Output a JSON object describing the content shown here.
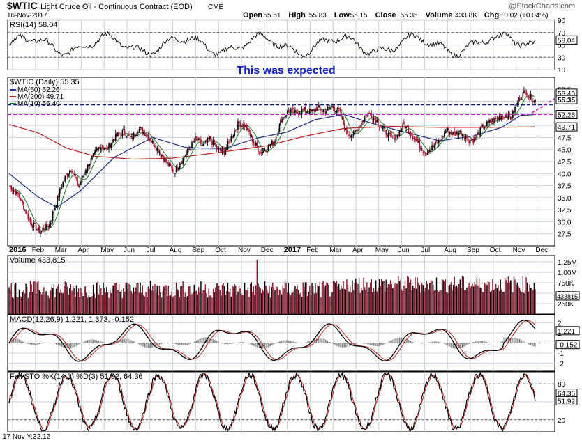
{
  "header": {
    "symbol": "$WTIC",
    "name": "Light Crude Oil - Continuous Contract (EOD)",
    "exchange": "CME",
    "date": "16-Nov-2017",
    "watermark": "@StockCharts.com",
    "ohlc": [
      {
        "label": "Open",
        "value": "55.51"
      },
      {
        "label": "High",
        "value": "55.83"
      },
      {
        "label": "Low",
        "value": "55.15"
      },
      {
        "label": "Close",
        "value": "55.35"
      },
      {
        "label": "Volume",
        "value": "433.8K"
      },
      {
        "label": "Chg",
        "value": "+0.02 (+0.04%)"
      }
    ],
    "chg_arrow": "up-arrow-icon"
  },
  "annotation": "This was expected",
  "footer_readout": "17 Nov Y:32.12",
  "colors": {
    "background": "#ffffff",
    "panel_bg": "#ffffff",
    "grid": "#c9d1de",
    "up_candle": "#000000",
    "down_candle": "#b01030",
    "ma50": "#1c2a8a",
    "ma200": "#c02020",
    "ma10": "#1b7a1b",
    "resistance_line": "#0a1590",
    "support_line": "#d010d0",
    "annotation_text": "#1420c8",
    "volume_bar": "#8b1a2e",
    "macd_line": "#000000",
    "macd_signal": "#c02020",
    "macd_hist": "#7a7a7a",
    "sto_k": "#000000",
    "sto_d": "#c02020"
  },
  "chart_data": [
    {
      "id": "rsi",
      "type": "line",
      "title": "RSI(14) 58.04",
      "ylim": [
        10,
        90
      ],
      "ticks": [
        90,
        70,
        50,
        30,
        10
      ],
      "last_value": 58.04,
      "bands": [
        70,
        30
      ]
    },
    {
      "id": "price",
      "type": "candlestick",
      "title": "$WTIC (Daily) 55.35",
      "legend": [
        {
          "name": "MA(50) 52.26",
          "color": "#1c2a8a"
        },
        {
          "name": "MA(200) 49.71",
          "color": "#c02020"
        },
        {
          "name": "MA(10) 56.40",
          "color": "#1b7a1b"
        }
      ],
      "ylim": [
        25,
        60
      ],
      "yticks": [
        57.5,
        55.0,
        52.5,
        50.0,
        47.5,
        45.0,
        42.5,
        40.0,
        37.5,
        35.0,
        32.5,
        30.0,
        27.5
      ],
      "ytick_labels": [
        "57.5",
        "55.0",
        "52.5",
        "50.0",
        "47.5",
        "45.0",
        "42.5",
        "40.0",
        "37.5",
        "35.0",
        "32.5",
        "30.0",
        "27.5"
      ],
      "price_tags": [
        {
          "value": 56.4,
          "label": "56.40"
        },
        {
          "value": 55.35,
          "label": "55.35"
        },
        {
          "value": 52.26,
          "label": "52.26"
        },
        {
          "value": 49.71,
          "label": "49.71"
        }
      ],
      "xaxis_labels": [
        "2016",
        "Feb",
        "Mar",
        "Apr",
        "May",
        "Jun",
        "Jul",
        "Aug",
        "Sep",
        "Oct",
        "Nov",
        "Dec",
        "2017",
        "Feb",
        "Mar",
        "Apr",
        "May",
        "Jun",
        "Jul",
        "Aug",
        "Sep",
        "Oct",
        "Nov",
        "Dec"
      ],
      "xaxis_bold": [
        "2016",
        "2017"
      ],
      "horizontal_lines": [
        {
          "name": "resistance",
          "y": 54.3,
          "style": "dashed"
        },
        {
          "name": "support",
          "y": 52.3,
          "style": "dashed"
        }
      ],
      "anchors": [
        [
          0,
          37.5
        ],
        [
          0.02,
          35.5
        ],
        [
          0.045,
          29.8
        ],
        [
          0.065,
          27.9
        ],
        [
          0.085,
          29.4
        ],
        [
          0.1,
          34.5
        ],
        [
          0.115,
          38.8
        ],
        [
          0.13,
          41.2
        ],
        [
          0.145,
          37.2
        ],
        [
          0.16,
          40.8
        ],
        [
          0.175,
          43.4
        ],
        [
          0.19,
          45.8
        ],
        [
          0.205,
          45.0
        ],
        [
          0.22,
          47.5
        ],
        [
          0.24,
          48.8
        ],
        [
          0.255,
          47.2
        ],
        [
          0.27,
          49.4
        ],
        [
          0.285,
          48.4
        ],
        [
          0.3,
          46.5
        ],
        [
          0.315,
          44.6
        ],
        [
          0.33,
          42.2
        ],
        [
          0.345,
          40.3
        ],
        [
          0.36,
          42.6
        ],
        [
          0.375,
          44.8
        ],
        [
          0.39,
          47.3
        ],
        [
          0.405,
          45.8
        ],
        [
          0.42,
          47.2
        ],
        [
          0.435,
          45.1
        ],
        [
          0.45,
          44.4
        ],
        [
          0.465,
          47.6
        ],
        [
          0.48,
          50.5
        ],
        [
          0.495,
          49.8
        ],
        [
          0.51,
          46.8
        ],
        [
          0.525,
          44.3
        ],
        [
          0.54,
          45.4
        ],
        [
          0.555,
          46.8
        ],
        [
          0.57,
          51.4
        ],
        [
          0.585,
          53.2
        ],
        [
          0.6,
          52.5
        ],
        [
          0.615,
          53.3
        ],
        [
          0.63,
          52.7
        ],
        [
          0.645,
          53.6
        ],
        [
          0.66,
          53.0
        ],
        [
          0.675,
          53.9
        ],
        [
          0.69,
          53.0
        ],
        [
          0.705,
          48.4
        ],
        [
          0.72,
          48.0
        ],
        [
          0.735,
          50.4
        ],
        [
          0.75,
          52.6
        ],
        [
          0.765,
          51.4
        ],
        [
          0.78,
          49.4
        ],
        [
          0.795,
          47.7
        ],
        [
          0.81,
          47.6
        ],
        [
          0.825,
          50.2
        ],
        [
          0.84,
          48.4
        ],
        [
          0.855,
          46.3
        ],
        [
          0.87,
          44.4
        ],
        [
          0.885,
          45.5
        ],
        [
          0.9,
          46.8
        ],
        [
          0.915,
          49.0
        ],
        [
          0.93,
          48.2
        ],
        [
          0.945,
          48.6
        ],
        [
          0.96,
          46.9
        ],
        [
          0.975,
          47.3
        ],
        [
          0.99,
          49.6
        ],
        [
          1.005,
          50.7
        ],
        [
          1.02,
          51.4
        ],
        [
          1.035,
          52.2
        ],
        [
          1.05,
          51.6
        ],
        [
          1.065,
          55.4
        ],
        [
          1.08,
          57.2
        ],
        [
          1.087,
          56.0
        ],
        [
          1.1,
          55.35
        ]
      ],
      "ma50_anchors": [
        [
          0,
          40
        ],
        [
          0.06,
          35.2
        ],
        [
          0.1,
          33
        ],
        [
          0.15,
          36.5
        ],
        [
          0.22,
          43.4
        ],
        [
          0.3,
          47.5
        ],
        [
          0.37,
          45.4
        ],
        [
          0.45,
          45.2
        ],
        [
          0.52,
          47.4
        ],
        [
          0.58,
          48.6
        ],
        [
          0.64,
          51.2
        ],
        [
          0.7,
          52.3
        ],
        [
          0.76,
          50.4
        ],
        [
          0.82,
          48.8
        ],
        [
          0.9,
          46.8
        ],
        [
          0.97,
          47.8
        ],
        [
          1.03,
          49.6
        ],
        [
          1.07,
          52.1
        ],
        [
          1.1,
          52.26
        ]
      ],
      "ma200_anchors": [
        [
          0,
          50.2
        ],
        [
          0.06,
          48.5
        ],
        [
          0.12,
          45.3
        ],
        [
          0.18,
          43.6
        ],
        [
          0.26,
          43.0
        ],
        [
          0.34,
          43.2
        ],
        [
          0.44,
          44.4
        ],
        [
          0.54,
          45.8
        ],
        [
          0.62,
          47.8
        ],
        [
          0.7,
          49.4
        ],
        [
          0.8,
          49.8
        ],
        [
          0.9,
          49.6
        ],
        [
          1.0,
          49.6
        ],
        [
          1.1,
          49.71
        ]
      ],
      "projection": {
        "from": [
          1.093,
          52.6
        ],
        "to": [
          1.16,
          56.8
        ]
      }
    },
    {
      "id": "volume",
      "type": "bar",
      "title": "Volume 433,815",
      "yticks": [
        "1.25M",
        "1.00M",
        "750K",
        "500K",
        "250K"
      ],
      "ytick_values": [
        1250000,
        1000000,
        750000,
        500000,
        250000
      ],
      "last_label": "433815",
      "ylim": [
        0,
        1400000
      ],
      "spike_index": 0.52
    },
    {
      "id": "macd",
      "type": "line",
      "title": "MACD(12,26,9) 1.221, 1.373, -0.152",
      "ylim": [
        -2.8,
        2.8
      ],
      "ticks": [
        2,
        1,
        0,
        -1,
        -2
      ],
      "tags": [
        {
          "value": 1.221,
          "label": "1.221"
        },
        {
          "value": -0.152,
          "label": "-0.152"
        }
      ]
    },
    {
      "id": "sto",
      "type": "line",
      "title": "Full STO %K(14,3) %D(3) 51.92, 64.36",
      "ylim": [
        0,
        100
      ],
      "ticks": [
        80,
        50,
        20
      ],
      "bands": [
        80,
        20
      ],
      "tags": [
        {
          "value": 64.36,
          "label": "64.36"
        },
        {
          "value": 51.92,
          "label": "51.92"
        }
      ]
    }
  ]
}
